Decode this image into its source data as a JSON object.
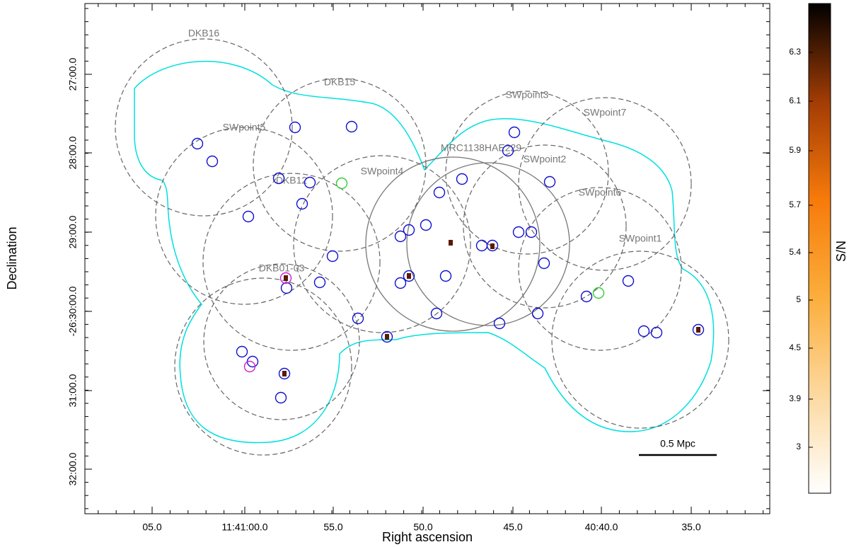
{
  "axes": {
    "x_label": "Right ascension",
    "y_label": "Declination",
    "x_ticks": [
      "05.0",
      "11:41:00.0",
      "55.0",
      "50.0",
      "45.0",
      "40:40.0",
      "35.0"
    ],
    "y_ticks": [
      "27:00.0",
      "28:00.0",
      "29:00.0",
      "-26:30:00.0",
      "31:00.0",
      "32:00.0"
    ]
  },
  "pointings": [
    "DKB16",
    "DKB15",
    "SWpoint3",
    "SWpoint7",
    "SWpoint5",
    "MRC1138HAE229",
    "SWpoint2",
    "SWpoint4",
    "DKB12",
    "SWpoint6",
    "SWpoint1",
    "DKB01-03"
  ],
  "colorbar": {
    "label": "S/N",
    "ticks": [
      "6.3",
      "6.1",
      "5.9",
      "5.7",
      "5.4",
      "5",
      "4.5",
      "3.9",
      "3"
    ]
  },
  "scale_bar": "0.5 Mpc"
}
